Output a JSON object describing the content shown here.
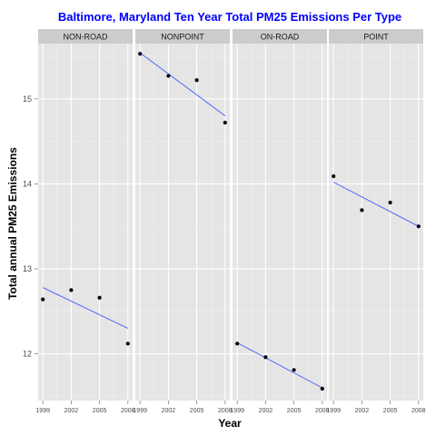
{
  "chart_data": {
    "type": "scatter",
    "title": "Baltimore, Maryland Ten Year Total PM25 Emissions Per Type",
    "xlabel": "Year",
    "ylabel": "Total annual PM25 Emissions",
    "x_ticks": [
      1999,
      2002,
      2005,
      2008
    ],
    "y_ticks": [
      12,
      13,
      14,
      15
    ],
    "xlim": [
      1998.5,
      2008.5
    ],
    "ylim": [
      11.45,
      15.65
    ],
    "title_color": "#0000ff",
    "trend_color": "#3f5fff",
    "panels": [
      {
        "label": "NON-ROAD",
        "x": [
          1999,
          2002,
          2005,
          2008
        ],
        "y": [
          12.64,
          12.75,
          12.66,
          12.12
        ],
        "trend": [
          12.78,
          12.3
        ]
      },
      {
        "label": "NONPOINT",
        "x": [
          1999,
          2002,
          2005,
          2008
        ],
        "y": [
          15.53,
          15.27,
          15.22,
          14.72
        ],
        "trend": [
          15.54,
          14.8
        ]
      },
      {
        "label": "ON-ROAD",
        "x": [
          1999,
          2002,
          2005,
          2008
        ],
        "y": [
          12.12,
          11.96,
          11.81,
          11.59
        ],
        "trend": [
          12.13,
          11.6
        ]
      },
      {
        "label": "POINT",
        "x": [
          1999,
          2002,
          2005,
          2008
        ],
        "y": [
          14.09,
          13.69,
          13.78,
          13.5
        ],
        "trend": [
          14.02,
          13.5
        ]
      }
    ]
  }
}
